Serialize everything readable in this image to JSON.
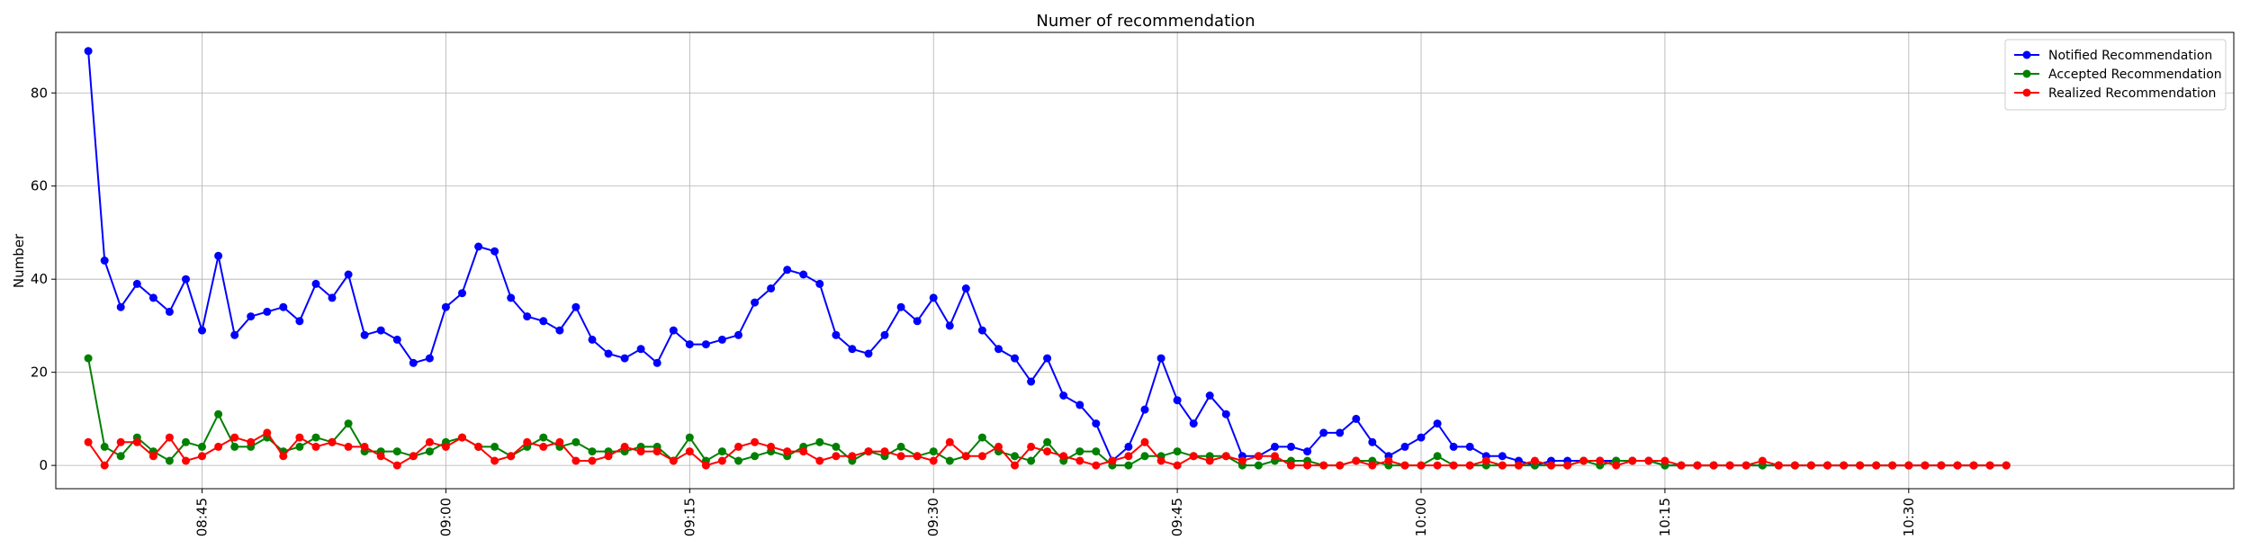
{
  "chart_data": {
    "type": "line",
    "title": "Numer of recommendation",
    "xlabel": "",
    "ylabel": "Number",
    "x_start": "08:38",
    "x_step_minutes": 1,
    "xlim": [
      "08:36",
      "10:50"
    ],
    "ylim": [
      -5,
      93
    ],
    "x_ticks": [
      {
        "time": "08:45",
        "label": "08:45"
      },
      {
        "time": "09:00",
        "label": "09:00"
      },
      {
        "time": "09:15",
        "label": "09:15"
      },
      {
        "time": "09:30",
        "label": "09:30"
      },
      {
        "time": "09:45",
        "label": "09:45"
      },
      {
        "time": "10:00",
        "label": "10:00"
      },
      {
        "time": "10:15",
        "label": "10:15"
      },
      {
        "time": "10:30",
        "label": "10:30"
      }
    ],
    "y_ticks": [
      0,
      20,
      40,
      60,
      80
    ],
    "grid": true,
    "legend_position": "top-right",
    "series": [
      {
        "name": "Notified Recommendation",
        "color": "#0000ff",
        "values": [
          89,
          44,
          34,
          39,
          36,
          33,
          40,
          29,
          45,
          28,
          32,
          33,
          34,
          31,
          39,
          36,
          41,
          28,
          29,
          27,
          22,
          23,
          34,
          37,
          47,
          46,
          36,
          32,
          31,
          29,
          34,
          27,
          24,
          23,
          25,
          22,
          29,
          26,
          26,
          27,
          28,
          35,
          38,
          42,
          41,
          39,
          28,
          25,
          24,
          28,
          34,
          31,
          36,
          30,
          38,
          29,
          25,
          23,
          18,
          23,
          15,
          13,
          9,
          1,
          4,
          12,
          23,
          14,
          9,
          15,
          11,
          2,
          2,
          4,
          4,
          3,
          7,
          7,
          10,
          5,
          2,
          4,
          6,
          9,
          4,
          4,
          2,
          2,
          1,
          0,
          1,
          1,
          1,
          1,
          1,
          1,
          1,
          0,
          0,
          0,
          0,
          0,
          0,
          0,
          0,
          0,
          0,
          0,
          0,
          0,
          0,
          0,
          0,
          0,
          0,
          0,
          0,
          0,
          0
        ]
      },
      {
        "name": "Accepted Recommendation",
        "color": "#008000",
        "values": [
          23,
          4,
          2,
          6,
          3,
          1,
          5,
          4,
          11,
          4,
          4,
          6,
          3,
          4,
          6,
          5,
          9,
          3,
          3,
          3,
          2,
          3,
          5,
          6,
          4,
          4,
          2,
          4,
          6,
          4,
          5,
          3,
          3,
          3,
          4,
          4,
          1,
          6,
          1,
          3,
          1,
          2,
          3,
          2,
          4,
          5,
          4,
          1,
          3,
          2,
          4,
          2,
          3,
          1,
          2,
          6,
          3,
          2,
          1,
          5,
          1,
          3,
          3,
          0,
          0,
          2,
          2,
          3,
          2,
          2,
          2,
          0,
          0,
          1,
          1,
          1,
          0,
          0,
          1,
          1,
          0,
          0,
          0,
          2,
          0,
          0,
          0,
          0,
          0,
          0,
          0,
          0,
          1,
          0,
          1,
          1,
          1,
          0,
          0,
          0,
          0,
          0,
          0,
          0,
          0,
          0,
          0,
          0,
          0,
          0,
          0,
          0,
          0,
          0,
          0,
          0,
          0,
          0,
          0
        ]
      },
      {
        "name": "Realized Recommendation",
        "color": "#ff0000",
        "values": [
          5,
          0,
          5,
          5,
          2,
          6,
          1,
          2,
          4,
          6,
          5,
          7,
          2,
          6,
          4,
          5,
          4,
          4,
          2,
          0,
          2,
          5,
          4,
          6,
          4,
          1,
          2,
          5,
          4,
          5,
          1,
          1,
          2,
          4,
          3,
          3,
          1,
          3,
          0,
          1,
          4,
          5,
          4,
          3,
          3,
          1,
          2,
          2,
          3,
          3,
          2,
          2,
          1,
          5,
          2,
          2,
          4,
          0,
          4,
          3,
          2,
          1,
          0,
          1,
          2,
          5,
          1,
          0,
          2,
          1,
          2,
          1,
          2,
          2,
          0,
          0,
          0,
          0,
          1,
          0,
          1,
          0,
          0,
          0,
          0,
          0,
          1,
          0,
          0,
          1,
          0,
          0,
          1,
          1,
          0,
          1,
          1,
          1,
          0,
          0,
          0,
          0,
          0,
          1,
          0,
          0,
          0,
          0,
          0,
          0,
          0,
          0,
          0,
          0,
          0,
          0,
          0,
          0,
          0
        ]
      }
    ]
  }
}
